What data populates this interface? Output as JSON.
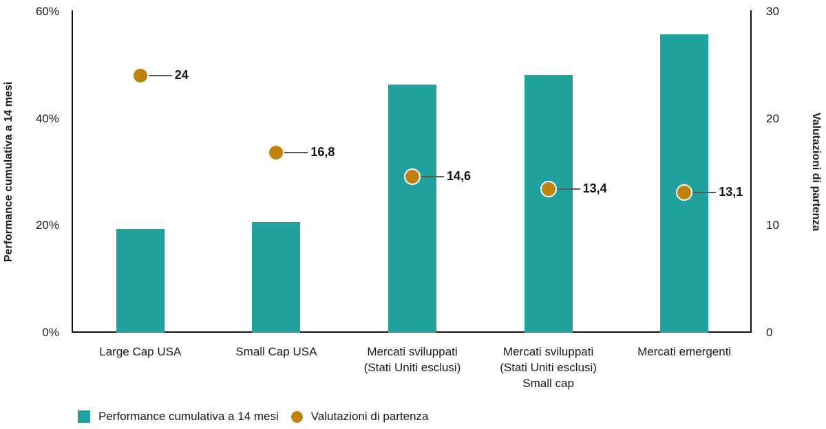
{
  "chart_data": {
    "type": "bar",
    "subtype": "bar-with-scatter-overlay-dual-axis",
    "title": "",
    "categories": [
      "Large Cap USA",
      "Small Cap USA",
      "Mercati sviluppati (Stati Uniti esclusi)",
      "Mercati sviluppati (Stati Uniti esclusi) Small cap",
      "Mercati emergenti"
    ],
    "category_lines": [
      [
        "Large Cap USA"
      ],
      [
        "Small Cap USA"
      ],
      [
        "Mercati sviluppati",
        "(Stati Uniti esclusi)"
      ],
      [
        "Mercati sviluppati",
        "(Stati Uniti esclusi)",
        "Small cap"
      ],
      [
        "Mercati emergenti"
      ]
    ],
    "series": [
      {
        "name": "Performance cumulativa a 14 mesi",
        "type": "bar",
        "axis": "left",
        "color": "#21a19d",
        "values": [
          19.4,
          20.7,
          46.4,
          48.2,
          55.7
        ]
      },
      {
        "name": "Valutazioni di partenza",
        "type": "scatter",
        "axis": "right",
        "color": "#bf830d",
        "values": [
          24,
          16.8,
          14.6,
          13.4,
          13.1
        ],
        "value_labels": [
          "24",
          "16,8",
          "14,6",
          "13,4",
          "13,1"
        ]
      }
    ],
    "left_axis": {
      "label": "Performance cumulativa a 14 mesi",
      "min": 0,
      "max": 60,
      "ticks": [
        0,
        20,
        40,
        60
      ],
      "tick_labels": [
        "0%",
        "20%",
        "40%",
        "60%"
      ]
    },
    "right_axis": {
      "label": "Valutazioni di partenza",
      "min": 0,
      "max": 30,
      "ticks": [
        0,
        10,
        20,
        30
      ],
      "tick_labels": [
        "0",
        "10",
        "20",
        "30"
      ]
    },
    "legend": {
      "position": "bottom-left",
      "items": [
        {
          "label": "Performance cumulativa a 14 mesi",
          "swatch": "square",
          "color": "#21a19d"
        },
        {
          "label": "Valutazioni di partenza",
          "swatch": "circle",
          "color": "#bf830d"
        }
      ]
    },
    "grid": false,
    "annotation_line_color": "#595959",
    "text_color": "#1a1a1a"
  }
}
